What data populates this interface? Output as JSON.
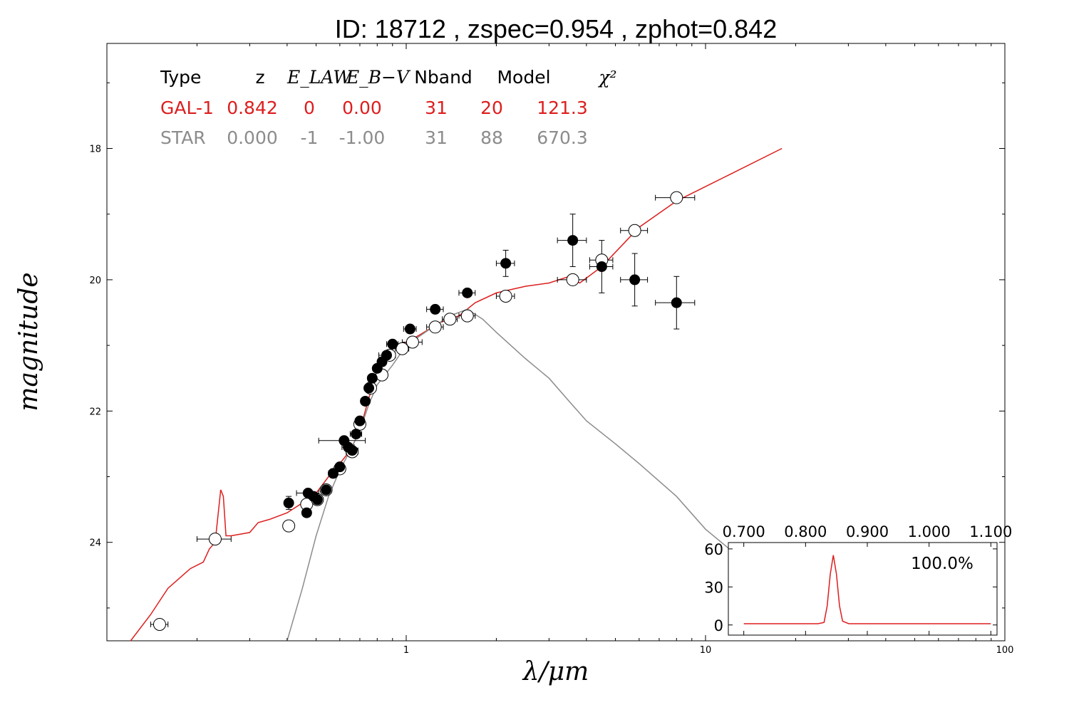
{
  "title": "ID:  18712 , zspec=0.954 , zphot=0.842",
  "colors": {
    "galaxy": "#dd1e1e",
    "star": "#8c8c8c",
    "axes": "#000000"
  },
  "chart_data": {
    "type": "scatter",
    "xlabel": "λ/μm",
    "ylabel": "magnitude",
    "xscale": "log",
    "xlim": [
      0.1,
      100
    ],
    "ylim": [
      25.5,
      16.4
    ],
    "y_inverted": true,
    "x_ticks": [
      "1",
      "10",
      "100"
    ],
    "y_ticks": [
      "18",
      "20",
      "22",
      "24"
    ],
    "grid": false,
    "table": {
      "headers": [
        "Type",
        "z",
        "E_LAW",
        "E_B−V",
        "Nband",
        "Model",
        "χ²"
      ],
      "rows": [
        {
          "name": "GAL-1",
          "color": "#dd1e1e",
          "values": [
            "GAL-1",
            "0.842",
            "0",
            "0.00",
            "31",
            "20",
            "121.3"
          ]
        },
        {
          "name": "STAR",
          "color": "#8c8c8c",
          "values": [
            "STAR",
            "0.000",
            "-1",
            "-1.00",
            "31",
            "88",
            "670.3"
          ]
        }
      ]
    },
    "observed_filled": [
      {
        "x": 0.405,
        "y": 23.4,
        "err_x": 0.012,
        "err_y": 0.1
      },
      {
        "x": 0.465,
        "y": 23.55,
        "err_x": 0.012,
        "err_y": 0.05
      },
      {
        "x": 0.47,
        "y": 23.25,
        "err_x": 0.04,
        "err_y": 0.05
      },
      {
        "x": 0.49,
        "y": 23.3,
        "err_x": 0.02,
        "err_y": 0.05
      },
      {
        "x": 0.505,
        "y": 23.35,
        "err_x": 0.02,
        "err_y": 0.05
      },
      {
        "x": 0.54,
        "y": 23.2,
        "err_x": 0.02,
        "err_y": 0.05
      },
      {
        "x": 0.57,
        "y": 22.95,
        "err_x": 0.02,
        "err_y": 0.05
      },
      {
        "x": 0.6,
        "y": 22.85,
        "err_x": 0.02,
        "err_y": 0.05
      },
      {
        "x": 0.62,
        "y": 22.45,
        "err_x": 0.11,
        "err_y": 0.05
      },
      {
        "x": 0.64,
        "y": 22.55,
        "err_x": 0.03,
        "err_y": 0.05
      },
      {
        "x": 0.66,
        "y": 22.6,
        "err_x": 0.03,
        "err_y": 0.05
      },
      {
        "x": 0.68,
        "y": 22.35,
        "err_x": 0.03,
        "err_y": 0.05
      },
      {
        "x": 0.7,
        "y": 22.15,
        "err_x": 0.02,
        "err_y": 0.05
      },
      {
        "x": 0.73,
        "y": 21.85,
        "err_x": 0.02,
        "err_y": 0.05
      },
      {
        "x": 0.75,
        "y": 21.65,
        "err_x": 0.02,
        "err_y": 0.05
      },
      {
        "x": 0.77,
        "y": 21.5,
        "err_x": 0.02,
        "err_y": 0.05
      },
      {
        "x": 0.8,
        "y": 21.35,
        "err_x": 0.02,
        "err_y": 0.05
      },
      {
        "x": 0.83,
        "y": 21.25,
        "err_x": 0.02,
        "err_y": 0.05
      },
      {
        "x": 0.86,
        "y": 21.15,
        "err_x": 0.05,
        "err_y": 0.05
      },
      {
        "x": 0.9,
        "y": 20.98,
        "err_x": 0.04,
        "err_y": 0.05
      },
      {
        "x": 1.03,
        "y": 20.75,
        "err_x": 0.05,
        "err_y": 0.05
      },
      {
        "x": 1.25,
        "y": 20.45,
        "err_x": 0.08,
        "err_y": 0.05
      },
      {
        "x": 1.6,
        "y": 20.2,
        "err_x": 0.1,
        "err_y": 0.05
      },
      {
        "x": 2.15,
        "y": 19.75,
        "err_x": 0.15,
        "err_y": 0.2
      },
      {
        "x": 3.6,
        "y": 19.4,
        "err_x": 0.4,
        "err_y": 0.4
      },
      {
        "x": 4.5,
        "y": 19.8,
        "err_x": 0.4,
        "err_y": 0.4
      },
      {
        "x": 5.8,
        "y": 20.0,
        "err_x": 0.6,
        "err_y": 0.4
      },
      {
        "x": 8.0,
        "y": 20.35,
        "err_x": 1.2,
        "err_y": 0.4
      }
    ],
    "model_fluxes": [
      {
        "x": 0.15,
        "y": 25.25,
        "err_x": 0.01
      },
      {
        "x": 0.23,
        "y": 23.95,
        "err_x": 0.03
      },
      {
        "x": 0.405,
        "y": 23.75,
        "err_x": 0.012
      },
      {
        "x": 0.465,
        "y": 23.42,
        "err_x": 0.012
      },
      {
        "x": 0.505,
        "y": 23.35,
        "err_x": 0.02
      },
      {
        "x": 0.54,
        "y": 23.2,
        "err_x": 0.02
      },
      {
        "x": 0.6,
        "y": 22.88,
        "err_x": 0.02
      },
      {
        "x": 0.66,
        "y": 22.62,
        "err_x": 0.03
      },
      {
        "x": 0.7,
        "y": 22.2,
        "err_x": 0.02
      },
      {
        "x": 0.76,
        "y": 21.65,
        "err_x": 0.02
      },
      {
        "x": 0.83,
        "y": 21.45,
        "err_x": 0.02
      },
      {
        "x": 0.88,
        "y": 21.15,
        "err_x": 0.04
      },
      {
        "x": 0.97,
        "y": 21.05,
        "err_x": 0.05
      },
      {
        "x": 1.05,
        "y": 20.95,
        "err_x": 0.08
      },
      {
        "x": 1.25,
        "y": 20.72,
        "err_x": 0.08
      },
      {
        "x": 1.4,
        "y": 20.6,
        "err_x": 0.08
      },
      {
        "x": 1.6,
        "y": 20.55,
        "err_x": 0.1
      },
      {
        "x": 2.15,
        "y": 20.25,
        "err_x": 0.15
      },
      {
        "x": 3.6,
        "y": 20.0,
        "err_x": 0.4
      },
      {
        "x": 4.5,
        "y": 19.7,
        "err_x": 0.4
      },
      {
        "x": 5.8,
        "y": 19.25,
        "err_x": 0.6
      },
      {
        "x": 8.0,
        "y": 18.75,
        "err_x": 1.2
      }
    ],
    "galaxy_model": {
      "name": "GAL-1",
      "x": [
        0.12,
        0.14,
        0.16,
        0.19,
        0.21,
        0.22,
        0.23,
        0.235,
        0.24,
        0.245,
        0.25,
        0.26,
        0.3,
        0.32,
        0.35,
        0.4,
        0.45,
        0.5,
        0.55,
        0.6,
        0.65,
        0.7,
        0.75,
        0.8,
        0.85,
        0.9,
        1.0,
        1.1,
        1.3,
        1.5,
        1.7,
        2.0,
        2.5,
        3.0,
        3.5,
        3.8,
        4.5,
        6.0,
        8.0,
        12.0,
        18.0
      ],
      "y": [
        25.5,
        25.1,
        24.7,
        24.4,
        24.3,
        24.1,
        24.0,
        23.6,
        23.2,
        23.3,
        23.9,
        23.9,
        23.85,
        23.7,
        23.65,
        23.55,
        23.4,
        23.25,
        23.0,
        22.8,
        22.6,
        22.3,
        21.8,
        21.45,
        21.2,
        21.05,
        20.95,
        20.85,
        20.65,
        20.55,
        20.35,
        20.2,
        20.1,
        20.05,
        19.95,
        20.05,
        19.8,
        19.2,
        18.8,
        18.4,
        18.0
      ]
    },
    "star_model": {
      "name": "STAR",
      "x": [
        0.4,
        0.45,
        0.5,
        0.55,
        0.6,
        0.65,
        0.7,
        0.75,
        0.8,
        0.9,
        1.0,
        1.2,
        1.4,
        1.6,
        1.8,
        2.0,
        2.5,
        3.0,
        3.5,
        4.0,
        5.0,
        6.0,
        8.0,
        10.0,
        12.0
      ],
      "y": [
        25.5,
        24.7,
        23.9,
        23.3,
        22.9,
        22.6,
        22.3,
        21.9,
        21.6,
        21.3,
        21.0,
        20.75,
        20.55,
        20.45,
        20.6,
        20.8,
        21.2,
        21.5,
        21.85,
        22.15,
        22.5,
        22.8,
        23.3,
        23.8,
        24.1
      ]
    },
    "inset": {
      "type": "line",
      "label": "100.0%",
      "x_ticks": [
        "0.700",
        "0.800",
        "0.900",
        "1.000",
        "1.100"
      ],
      "y_ticks": [
        "60",
        "30",
        "0"
      ],
      "xlim": [
        0.675,
        1.11
      ],
      "ylim": [
        -8,
        65
      ],
      "x": [
        0.7,
        0.72,
        0.74,
        0.76,
        0.78,
        0.8,
        0.81,
        0.82,
        0.83,
        0.835,
        0.84,
        0.845,
        0.85,
        0.855,
        0.86,
        0.87,
        0.9,
        0.95,
        1.0,
        1.05,
        1.1
      ],
      "y": [
        1,
        1,
        1,
        1,
        1,
        1,
        1,
        1,
        2,
        15,
        40,
        55,
        40,
        15,
        3,
        1,
        1,
        1,
        1,
        1,
        1
      ]
    }
  }
}
